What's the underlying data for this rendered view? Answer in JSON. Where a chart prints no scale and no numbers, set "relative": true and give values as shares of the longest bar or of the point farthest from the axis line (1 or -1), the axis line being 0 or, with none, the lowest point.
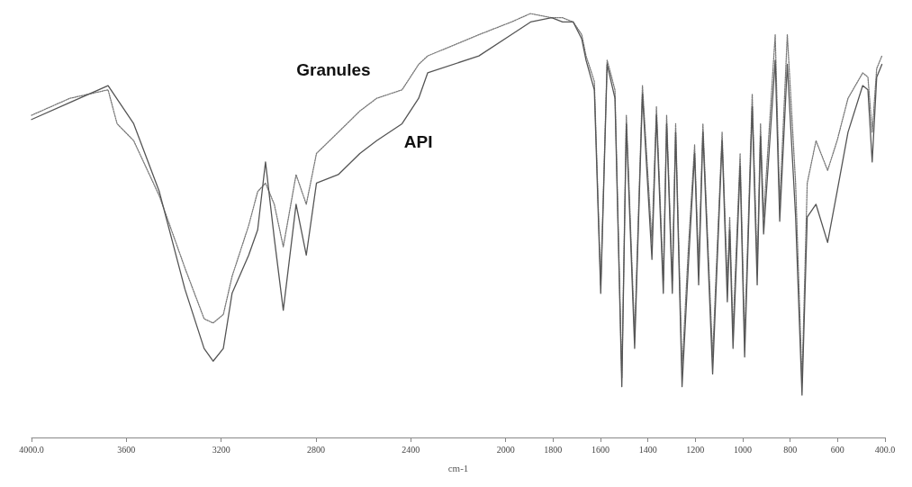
{
  "chart_data": {
    "type": "line",
    "xlabel": "cm-1",
    "relative": true,
    "marker": "none",
    "tick_labels": "x",
    "xlim": [
      4000,
      400
    ],
    "xticks": [
      {
        "value": 4000,
        "label": "4000.0"
      },
      3600,
      3200,
      2800,
      2400,
      2000,
      1800,
      1600,
      1400,
      1200,
      1000,
      800,
      600,
      {
        "value": 400,
        "label": "400.0"
      }
    ],
    "series": [
      {
        "name": "Granules",
        "color": "#777777",
        "line_style": "dotted",
        "x": [
          4000,
          3838,
          3677,
          3639,
          3569,
          3461,
          3353,
          3272,
          3234,
          3191,
          3154,
          3084,
          3046,
          3013,
          2976,
          2938,
          2884,
          2841,
          2798,
          2706,
          2615,
          2544,
          2437,
          2367,
          2329,
          2113,
          1976,
          1895,
          1806,
          1760,
          1715,
          1679,
          1661,
          1626,
          1599,
          1572,
          1539,
          1510,
          1491,
          1456,
          1423,
          1383,
          1364,
          1335,
          1321,
          1297,
          1283,
          1256,
          1229,
          1203,
          1186,
          1168,
          1127,
          1087,
          1065,
          1055,
          1041,
          1011,
          992,
          960,
          939,
          925,
          912,
          863,
          844,
          812,
          777,
          750,
          728,
          691,
          642,
          602,
          556,
          494,
          472,
          454,
          435,
          413
        ],
        "values": [
          0.76,
          0.8,
          0.82,
          0.74,
          0.7,
          0.57,
          0.4,
          0.28,
          0.27,
          0.29,
          0.38,
          0.5,
          0.58,
          0.6,
          0.55,
          0.45,
          0.62,
          0.55,
          0.67,
          0.72,
          0.77,
          0.8,
          0.82,
          0.88,
          0.9,
          0.95,
          0.98,
          1.0,
          0.99,
          0.99,
          0.98,
          0.95,
          0.9,
          0.84,
          0.36,
          0.89,
          0.82,
          0.14,
          0.76,
          0.24,
          0.83,
          0.46,
          0.78,
          0.37,
          0.76,
          0.37,
          0.74,
          0.16,
          0.45,
          0.69,
          0.4,
          0.74,
          0.19,
          0.72,
          0.36,
          0.52,
          0.25,
          0.67,
          0.23,
          0.81,
          0.4,
          0.74,
          0.52,
          0.95,
          0.55,
          0.95,
          0.6,
          0.13,
          0.6,
          0.7,
          0.63,
          0.7,
          0.8,
          0.86,
          0.85,
          0.72,
          0.87,
          0.9
        ]
      },
      {
        "name": "API",
        "color": "#555555",
        "line_style": "solid",
        "x": [
          4000,
          3838,
          3677,
          3569,
          3461,
          3353,
          3272,
          3234,
          3191,
          3154,
          3084,
          3046,
          3013,
          2976,
          2938,
          2884,
          2841,
          2798,
          2706,
          2615,
          2544,
          2437,
          2367,
          2329,
          2113,
          1976,
          1895,
          1806,
          1760,
          1715,
          1679,
          1661,
          1626,
          1599,
          1572,
          1539,
          1510,
          1491,
          1456,
          1423,
          1383,
          1364,
          1335,
          1321,
          1297,
          1283,
          1256,
          1229,
          1203,
          1186,
          1168,
          1127,
          1087,
          1065,
          1055,
          1041,
          1011,
          992,
          960,
          939,
          925,
          912,
          863,
          844,
          812,
          777,
          750,
          728,
          691,
          642,
          602,
          556,
          494,
          472,
          454,
          435,
          413
        ],
        "values": [
          0.75,
          0.79,
          0.83,
          0.74,
          0.58,
          0.35,
          0.21,
          0.18,
          0.21,
          0.34,
          0.43,
          0.49,
          0.65,
          0.47,
          0.3,
          0.55,
          0.43,
          0.6,
          0.62,
          0.67,
          0.7,
          0.74,
          0.8,
          0.86,
          0.9,
          0.95,
          0.98,
          0.99,
          0.98,
          0.98,
          0.94,
          0.89,
          0.82,
          0.34,
          0.88,
          0.8,
          0.12,
          0.74,
          0.21,
          0.81,
          0.42,
          0.76,
          0.34,
          0.74,
          0.34,
          0.72,
          0.12,
          0.41,
          0.67,
          0.36,
          0.72,
          0.15,
          0.7,
          0.32,
          0.49,
          0.21,
          0.64,
          0.19,
          0.78,
          0.36,
          0.71,
          0.48,
          0.89,
          0.51,
          0.88,
          0.52,
          0.1,
          0.52,
          0.55,
          0.46,
          0.58,
          0.72,
          0.83,
          0.82,
          0.65,
          0.85,
          0.88
        ]
      }
    ]
  }
}
